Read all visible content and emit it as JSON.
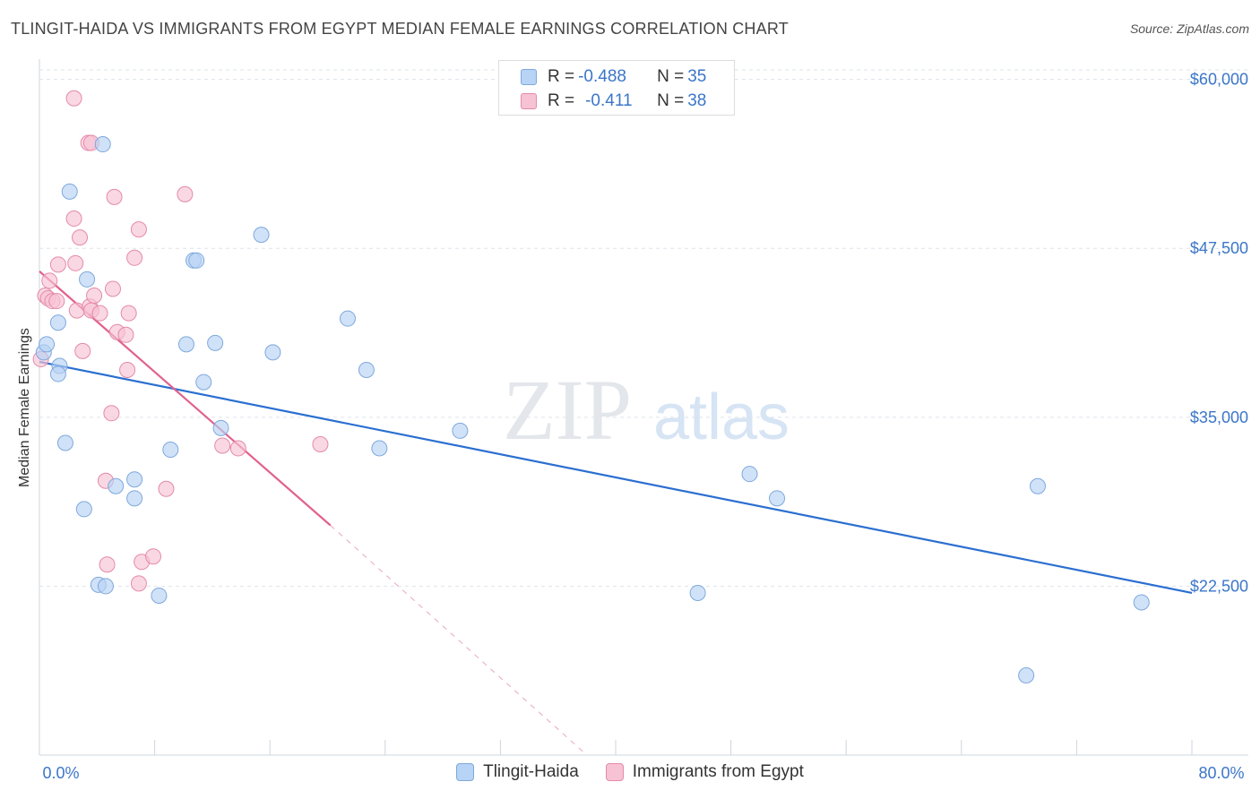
{
  "title": "TLINGIT-HAIDA VS IMMIGRANTS FROM EGYPT MEDIAN FEMALE EARNINGS CORRELATION CHART",
  "source": "Source: ZipAtlas.com",
  "watermark": {
    "zip": "ZIP",
    "atlas": "atlas"
  },
  "legend": {
    "series1": {
      "r_label": "R = ",
      "r_value": "-0.488",
      "n_label": "N = ",
      "n_value": "35"
    },
    "series2": {
      "r_label": "R = ",
      "r_value": "-0.411",
      "n_label": "N = ",
      "n_value": "38"
    }
  },
  "colors": {
    "blue_fill": "#b7d3f5",
    "blue_stroke": "#7fa8dc",
    "blue_line": "#2a6fd0",
    "pink_fill": "#f7c3d4",
    "pink_stroke": "#e48aaa",
    "pink_line": "#e0628e",
    "axis_text": "#3b76c9",
    "grid": "#dde3ea"
  },
  "chart_data": {
    "type": "scatter",
    "title": "TLINGIT-HAIDA VS IMMIGRANTS FROM EGYPT MEDIAN FEMALE EARNINGS CORRELATION CHART",
    "xlabel": "",
    "ylabel": "Median Female Earnings",
    "xlim": [
      0,
      80
    ],
    "ylim": [
      10000,
      61500
    ],
    "x_tick_labels": [
      "0.0%",
      "80.0%"
    ],
    "y_ticks": [
      22500,
      35000,
      47500,
      60000
    ],
    "y_tick_labels": [
      "$22,500",
      "$35,000",
      "$47,500",
      "$60,000"
    ],
    "series": [
      {
        "name": "Tlingit-Haida",
        "points": [
          [
            0.3,
            39800
          ],
          [
            0.5,
            40400
          ],
          [
            1.3,
            42000
          ],
          [
            1.4,
            38800
          ],
          [
            1.3,
            38200
          ],
          [
            1.8,
            33100
          ],
          [
            2.1,
            51700
          ],
          [
            3.1,
            28200
          ],
          [
            3.3,
            45200
          ],
          [
            4.1,
            22600
          ],
          [
            4.4,
            55200
          ],
          [
            4.6,
            22500
          ],
          [
            5.3,
            29900
          ],
          [
            6.6,
            30400
          ],
          [
            6.6,
            29000
          ],
          [
            8.3,
            21800
          ],
          [
            9.1,
            32600
          ],
          [
            10.2,
            40400
          ],
          [
            10.7,
            46600
          ],
          [
            10.9,
            46600
          ],
          [
            11.4,
            37600
          ],
          [
            12.2,
            40500
          ],
          [
            12.6,
            34200
          ],
          [
            15.4,
            48500
          ],
          [
            16.2,
            39800
          ],
          [
            21.4,
            42300
          ],
          [
            22.7,
            38500
          ],
          [
            23.6,
            32700
          ],
          [
            29.2,
            34000
          ],
          [
            45.7,
            22000
          ],
          [
            49.3,
            30800
          ],
          [
            51.2,
            29000
          ],
          [
            69.3,
            29900
          ],
          [
            76.5,
            21300
          ],
          [
            68.5,
            15900
          ]
        ]
      },
      {
        "name": "Immigrants from Egypt",
        "points": [
          [
            0.1,
            39300
          ],
          [
            0.4,
            44000
          ],
          [
            0.6,
            43800
          ],
          [
            0.7,
            45100
          ],
          [
            0.9,
            43600
          ],
          [
            1.2,
            43600
          ],
          [
            1.3,
            46300
          ],
          [
            2.4,
            49700
          ],
          [
            2.5,
            46400
          ],
          [
            2.4,
            58600
          ],
          [
            2.6,
            42900
          ],
          [
            2.8,
            48300
          ],
          [
            3.0,
            39900
          ],
          [
            3.4,
            55300
          ],
          [
            3.6,
            55300
          ],
          [
            3.5,
            43200
          ],
          [
            3.6,
            42900
          ],
          [
            3.8,
            44000
          ],
          [
            4.2,
            42700
          ],
          [
            4.6,
            30300
          ],
          [
            4.7,
            24100
          ],
          [
            5.0,
            35300
          ],
          [
            5.1,
            44500
          ],
          [
            5.2,
            51300
          ],
          [
            5.4,
            41300
          ],
          [
            6.0,
            41100
          ],
          [
            6.2,
            42700
          ],
          [
            6.1,
            38500
          ],
          [
            6.6,
            46800
          ],
          [
            6.9,
            48900
          ],
          [
            6.9,
            22700
          ],
          [
            7.1,
            24300
          ],
          [
            7.9,
            24700
          ],
          [
            8.8,
            29700
          ],
          [
            10.1,
            51500
          ],
          [
            12.7,
            32900
          ],
          [
            13.8,
            32700
          ],
          [
            19.5,
            33000
          ]
        ]
      }
    ],
    "trend_lines": [
      {
        "series": "Tlingit-Haida",
        "x": [
          0,
          80
        ],
        "y": [
          39100,
          22000
        ]
      },
      {
        "series": "Immigrants from Egypt",
        "x": [
          0,
          20.2
        ],
        "y": [
          45800,
          27000
        ],
        "dashed_extension_to": [
          38,
          10000
        ]
      }
    ]
  }
}
